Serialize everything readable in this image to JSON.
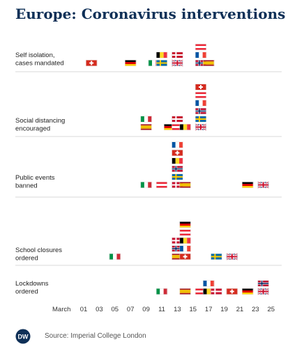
{
  "title": "Europe: Coronavirus interventions",
  "source": "Source: Imperial College London",
  "logo_text": "DW",
  "colors": {
    "title": "#0f3057",
    "separator": "#d9d9d9",
    "text": "#222222"
  },
  "chart_data": {
    "type": "timeline",
    "x_axis_label": "March",
    "ticks": [
      "01",
      "03",
      "05",
      "07",
      "09",
      "11",
      "13",
      "15",
      "17",
      "19",
      "21",
      "23",
      "25"
    ],
    "interventions": [
      {
        "label": [
          "Self isolation,",
          "cases mandated"
        ],
        "events": [
          {
            "day": 2,
            "countries": [
              "Switzerland"
            ]
          },
          {
            "day": 7,
            "countries": [
              "Germany"
            ]
          },
          {
            "day": 10,
            "countries": [
              "Italy"
            ]
          },
          {
            "day": 11,
            "countries": [
              "Sweden",
              "Belgium"
            ]
          },
          {
            "day": 13,
            "countries": [
              "United Kingdom",
              "Denmark"
            ]
          },
          {
            "day": 16,
            "countries": [
              "Norway",
              "France",
              "Austria"
            ]
          },
          {
            "day": 17,
            "countries": [
              "Spain"
            ]
          }
        ]
      },
      {
        "label": [
          "Social distancing",
          "encouraged"
        ],
        "events": [
          {
            "day": 9,
            "countries": [
              "Spain",
              "Italy"
            ]
          },
          {
            "day": 12,
            "countries": [
              "Germany"
            ]
          },
          {
            "day": 13,
            "countries": [
              "Austria",
              "Denmark"
            ]
          },
          {
            "day": 14,
            "countries": [
              "Belgium"
            ]
          },
          {
            "day": 16,
            "countries": [
              "United Kingdom",
              "Sweden",
              "Norway",
              "France",
              "Austria",
              "Switzerland"
            ]
          }
        ]
      },
      {
        "label": [
          "Public events",
          "banned"
        ],
        "events": [
          {
            "day": 9,
            "countries": [
              "Italy"
            ]
          },
          {
            "day": 11,
            "countries": [
              "Austria"
            ]
          },
          {
            "day": 13,
            "countries": [
              "Denmark",
              "Sweden",
              "Norway",
              "Belgium",
              "Switzerland",
              "France"
            ]
          },
          {
            "day": 14,
            "countries": [
              "Spain"
            ]
          },
          {
            "day": 22,
            "countries": [
              "Germany"
            ]
          },
          {
            "day": 24,
            "countries": [
              "United Kingdom"
            ]
          }
        ]
      },
      {
        "label": [
          "School closures",
          "ordered"
        ],
        "events": [
          {
            "day": 5,
            "countries": [
              "Italy"
            ]
          },
          {
            "day": 13,
            "countries": [
              "Spain",
              "Norway",
              "Denmark"
            ]
          },
          {
            "day": 14,
            "countries": [
              "Switzerland",
              "France",
              "Belgium",
              "Austria",
              "Germany"
            ]
          },
          {
            "day": 18,
            "countries": [
              "Sweden"
            ]
          },
          {
            "day": 20,
            "countries": [
              "United Kingdom"
            ]
          }
        ]
      },
      {
        "label": [
          "Lockdowns",
          "ordered"
        ],
        "events": [
          {
            "day": 11,
            "countries": [
              "Italy"
            ]
          },
          {
            "day": 14,
            "countries": [
              "Spain"
            ]
          },
          {
            "day": 16,
            "countries": [
              "Austria"
            ]
          },
          {
            "day": 17,
            "countries": [
              "Belgium",
              "France"
            ]
          },
          {
            "day": 18,
            "countries": [
              "Denmark"
            ]
          },
          {
            "day": 20,
            "countries": [
              "Switzerland"
            ]
          },
          {
            "day": 22,
            "countries": [
              "Germany"
            ]
          },
          {
            "day": 24,
            "countries": [
              "United Kingdom",
              "Norway"
            ]
          }
        ]
      }
    ]
  }
}
